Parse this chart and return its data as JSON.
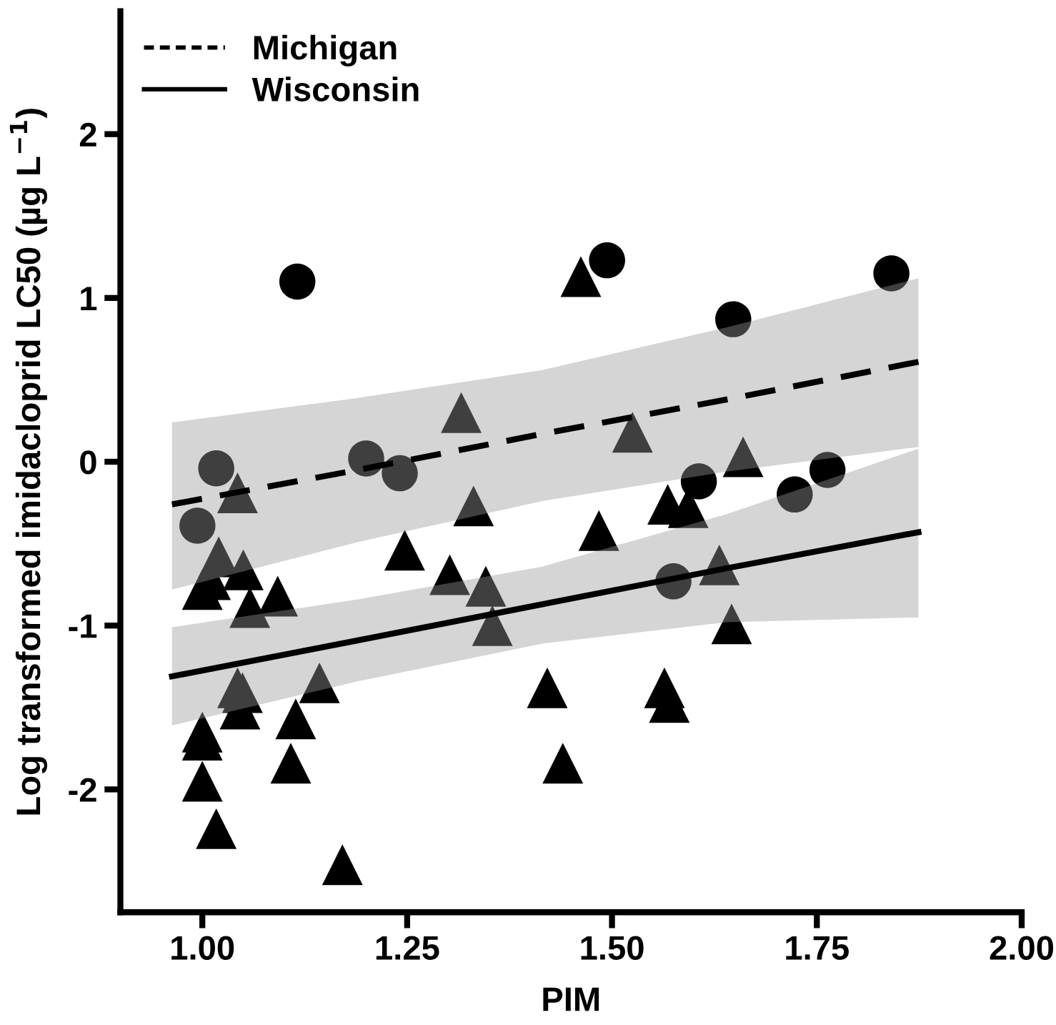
{
  "chart_data": {
    "type": "scatter",
    "xlabel": "PIM",
    "ylabel": "Log transformed imidacloprid LC50 (µg L$^{−1}$)",
    "xlim": [
      0.9,
      2.0
    ],
    "ylim": [
      -2.75,
      2.75
    ],
    "xticks": [
      {
        "value": 1.0,
        "label": "1.00"
      },
      1.25,
      {
        "value": 1.5,
        "label": "1.50"
      },
      1.75,
      {
        "value": 2.0,
        "label": "2.00"
      }
    ],
    "yticks": [
      -2,
      -1,
      0,
      1,
      2
    ],
    "grid": false,
    "legend": "top left",
    "series": [
      {
        "marker": "circle",
        "color": "#000000",
        "x": [
          0.994,
          1.017,
          1.116,
          1.2,
          1.241,
          1.494,
          1.606,
          1.575,
          1.648,
          1.723,
          1.763,
          1.841
        ],
        "values": [
          -0.39,
          -0.04,
          1.1,
          0.02,
          -0.07,
          1.23,
          -0.12,
          -0.73,
          0.87,
          -0.2,
          -0.05,
          1.15
        ]
      },
      {
        "marker": "triangle",
        "color": "#000000",
        "x": [
          1.043,
          1.02,
          1.05,
          1.0,
          1.01,
          1.058,
          1.092,
          1.043,
          1.049,
          1.046,
          1.143,
          1.114,
          1.0,
          1.0,
          1.108,
          1.0,
          1.017,
          1.171,
          1.247,
          1.302,
          1.346,
          1.354,
          1.316,
          1.331,
          1.421,
          1.44,
          1.462,
          1.484,
          1.525,
          1.568,
          1.593,
          1.564,
          1.57,
          1.631,
          1.646,
          1.66
        ],
        "values": [
          -0.19,
          -0.58,
          -0.66,
          -0.78,
          -0.72,
          -0.89,
          -0.82,
          -1.38,
          -1.41,
          -1.51,
          -1.35,
          -1.57,
          -1.65,
          -1.7,
          -1.84,
          -1.95,
          -2.24,
          -2.46,
          -0.54,
          -0.69,
          -0.76,
          -1.0,
          0.3,
          -0.27,
          -1.38,
          -1.84,
          1.13,
          -0.42,
          0.18,
          -0.26,
          -0.28,
          -1.38,
          -1.47,
          -0.63,
          -0.99,
          0.03
        ]
      },
      {
        "type": "line",
        "name": "Michigan",
        "color": "#000000",
        "line_style": "dashed",
        "marker": "none",
        "x": [
          0.963,
          1.19,
          1.415,
          1.64,
          1.874
        ],
        "values": [
          -0.26,
          -0.05,
          0.17,
          0.38,
          0.61
        ],
        "lower": [
          -0.78,
          -0.49,
          -0.24,
          -0.06,
          0.09
        ],
        "upper": [
          0.24,
          0.39,
          0.56,
          0.82,
          1.12
        ]
      },
      {
        "type": "line",
        "name": "Wisconsin",
        "color": "#000000",
        "line_style": "solid",
        "marker": "none",
        "x": [
          0.963,
          1.19,
          1.415,
          1.64,
          1.874
        ],
        "values": [
          -1.31,
          -1.09,
          -0.87,
          -0.65,
          -0.43
        ],
        "lower": [
          -1.61,
          -1.34,
          -1.11,
          -0.98,
          -0.95
        ],
        "upper": [
          -1.01,
          -0.84,
          -0.64,
          -0.32,
          0.08
        ]
      }
    ]
  }
}
